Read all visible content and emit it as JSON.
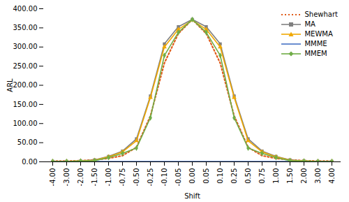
{
  "chart_data": {
    "type": "line",
    "xlabel": "Shift",
    "ylabel": "ARL",
    "categories": [
      "-4.00",
      "-3.00",
      "-2.00",
      "-1.50",
      "-1.00",
      "-0.75",
      "-0.50",
      "-0.25",
      "-0.10",
      "-0.05",
      "0.00",
      "0.05",
      "0.10",
      "0.25",
      "0.50",
      "0.75",
      "1.00",
      "1.50",
      "2.00",
      "3.00",
      "4.00"
    ],
    "series": [
      {
        "name": "Shewhart",
        "color": "#e05c1a",
        "line_style": "dotted",
        "marker": "none",
        "values": [
          2,
          2,
          3,
          5,
          9,
          16,
          38,
          120,
          258,
          335,
          372,
          335,
          258,
          120,
          38,
          16,
          9,
          5,
          3,
          2,
          2
        ]
      },
      {
        "name": "MA",
        "color": "#808080",
        "line_style": "solid",
        "marker": "square",
        "values": [
          1,
          1,
          2,
          5,
          14,
          28,
          60,
          172,
          308,
          353,
          372,
          353,
          308,
          172,
          60,
          28,
          14,
          5,
          2,
          1,
          1
        ]
      },
      {
        "name": "MEWMA",
        "color": "#f0a800",
        "line_style": "solid",
        "marker": "triangle",
        "values": [
          1,
          1,
          2,
          4,
          13,
          26,
          55,
          168,
          300,
          346,
          370,
          346,
          300,
          168,
          55,
          26,
          13,
          4,
          2,
          1,
          1
        ]
      },
      {
        "name": "MMME",
        "color": "#4472c4",
        "line_style": "solid",
        "marker": "none",
        "values": [
          1,
          1,
          1,
          1,
          1,
          1,
          1,
          1,
          1,
          1,
          1,
          1,
          1,
          1,
          1,
          1,
          1,
          1,
          1,
          1,
          1
        ]
      },
      {
        "name": "MMEM",
        "color": "#70ad47",
        "line_style": "solid",
        "marker": "diamond",
        "values": [
          1,
          1,
          2,
          3,
          11,
          22,
          36,
          115,
          278,
          338,
          372,
          338,
          278,
          115,
          36,
          22,
          11,
          3,
          2,
          1,
          1
        ]
      }
    ],
    "ylim": [
      0,
      400
    ],
    "yticks": [
      {
        "value": 0,
        "label": "0.00"
      },
      {
        "value": 50,
        "label": "50.00"
      },
      {
        "value": 100,
        "label": "100.00"
      },
      {
        "value": 150,
        "label": "150.00"
      },
      {
        "value": 200,
        "label": "200.00"
      },
      {
        "value": 250,
        "label": "250.00"
      },
      {
        "value": 300,
        "label": "300.00"
      },
      {
        "value": 350,
        "label": "350.00"
      },
      {
        "value": 400,
        "label": "400.00"
      }
    ],
    "grid": false,
    "legend": "upper right"
  }
}
